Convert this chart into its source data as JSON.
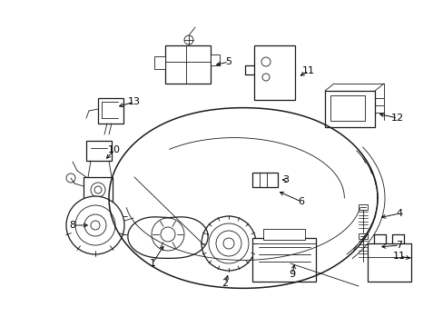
{
  "bg_color": "#ffffff",
  "line_color": "#1a1a1a",
  "figsize": [
    4.89,
    3.6
  ],
  "dpi": 100,
  "label_fs": 8,
  "lw_main": 0.9,
  "lw_thin": 0.6,
  "lw_body": 1.1
}
